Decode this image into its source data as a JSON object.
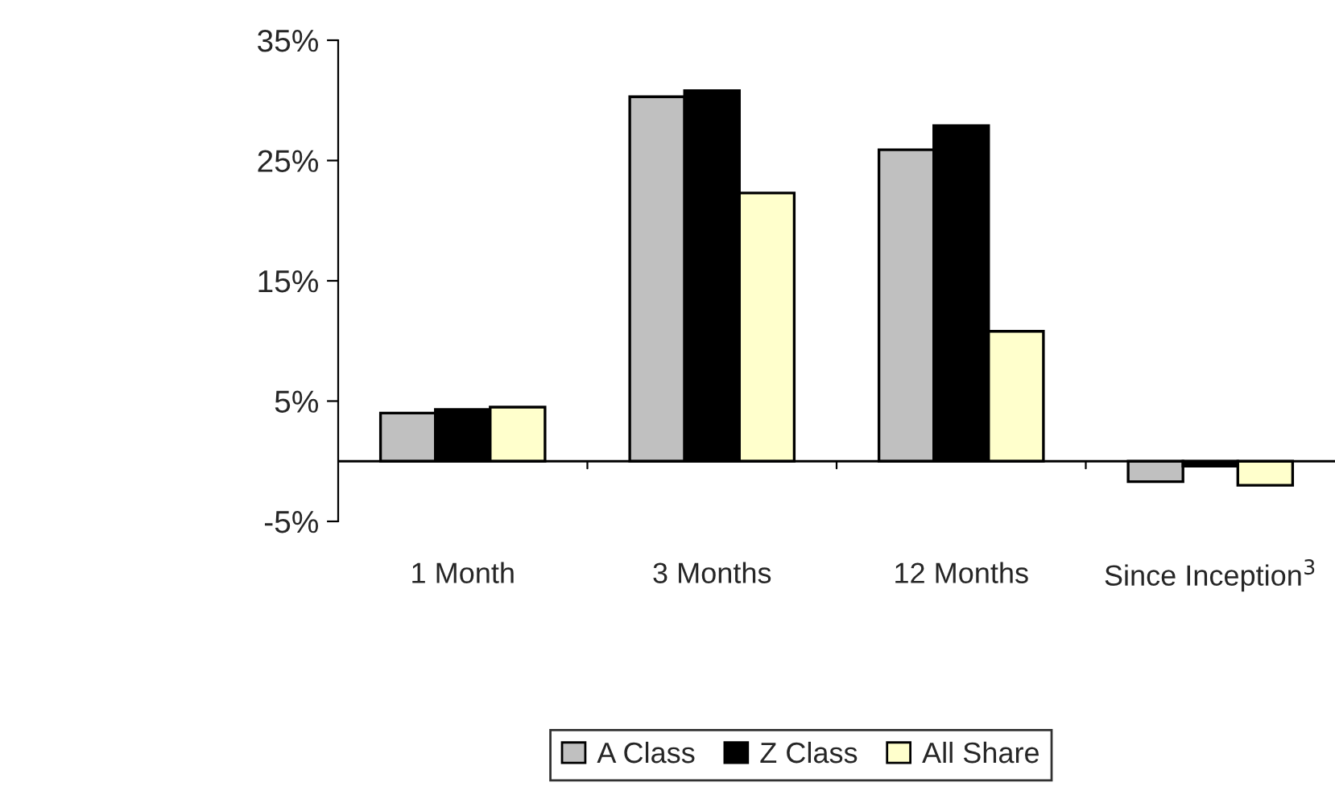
{
  "chart_data": {
    "type": "bar",
    "categories": [
      "1 Month",
      "3 Months",
      "12 Months",
      "Since Inception$^{3}$"
    ],
    "series": [
      {
        "name": "A Class",
        "color": "#c0c0c0",
        "values": [
          4.0,
          30.3,
          25.9,
          -1.7
        ]
      },
      {
        "name": "Z Class",
        "color": "#000000",
        "values": [
          4.3,
          30.8,
          27.9,
          -0.4
        ]
      },
      {
        "name": "All Share",
        "color": "#ffffcc",
        "values": [
          4.5,
          22.3,
          10.8,
          -2.0
        ]
      }
    ],
    "ylim": [
      -5,
      35
    ],
    "yticks": [
      {
        "value": -5,
        "label": "-5%"
      },
      {
        "value": 5,
        "label": "5%"
      },
      {
        "value": 15,
        "label": "15%"
      },
      {
        "value": 25,
        "label": "25%"
      },
      {
        "value": 35,
        "label": "35%"
      }
    ],
    "grid": false,
    "legend": "bottom"
  }
}
